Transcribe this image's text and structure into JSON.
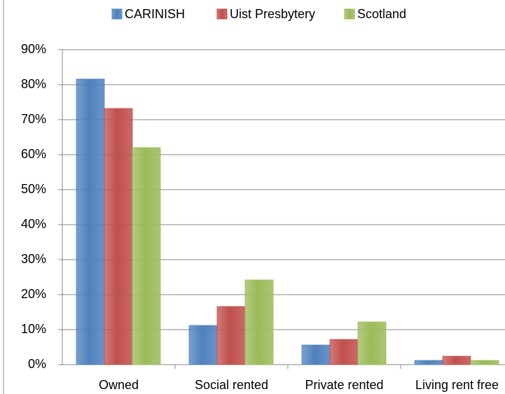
{
  "chart_data": {
    "type": "bar",
    "categories": [
      "Owned",
      "Social rented",
      "Private rented",
      "Living rent free"
    ],
    "series": [
      {
        "name": "CARINISH",
        "color": "#4f81bd",
        "values": [
          81.6,
          11.2,
          5.6,
          1.2
        ]
      },
      {
        "name": "Uist Presbytery",
        "color": "#c0504d",
        "values": [
          73.2,
          16.6,
          7.2,
          2.4
        ]
      },
      {
        "name": "Scotland",
        "color": "#9bbb59",
        "values": [
          62.0,
          24.2,
          12.2,
          1.2
        ]
      }
    ],
    "ylim": [
      0,
      90
    ],
    "yticks": [
      {
        "value": 0,
        "label": "0%"
      },
      {
        "value": 10,
        "label": "10%"
      },
      {
        "value": 20,
        "label": "20%"
      },
      {
        "value": 30,
        "label": "30%"
      },
      {
        "value": 40,
        "label": "40%"
      },
      {
        "value": 50,
        "label": "50%"
      },
      {
        "value": 60,
        "label": "60%"
      },
      {
        "value": 70,
        "label": "70%"
      },
      {
        "value": 80,
        "label": "80%"
      },
      {
        "value": 90,
        "label": "90%"
      }
    ],
    "grid": true,
    "legend": "top"
  }
}
